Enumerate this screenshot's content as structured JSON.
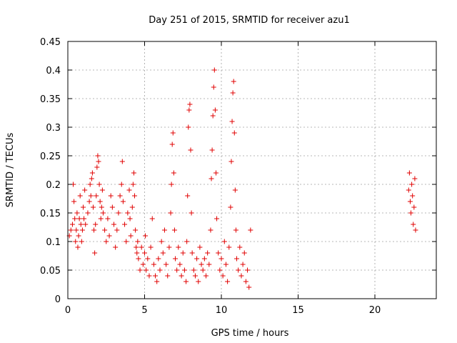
{
  "chart_data": {
    "type": "scatter",
    "title": "Day 251 of 2015, SRMTID for receiver azu1",
    "xlabel": "GPS time / hours",
    "ylabel": "SRMTID / TECUs",
    "xlim": [
      0,
      24
    ],
    "ylim": [
      0,
      0.45
    ],
    "xticks": [
      0,
      5,
      10,
      15,
      20
    ],
    "yticks": [
      0,
      0.05,
      0.1,
      0.15,
      0.2,
      0.25,
      0.3,
      0.35,
      0.4,
      0.45
    ],
    "xtick_labels": [
      "0",
      "5",
      "10",
      "15",
      "20"
    ],
    "ytick_labels": [
      "0",
      "0.05",
      "0.1",
      "0.15",
      "0.2",
      "0.25",
      "0.3",
      "0.35",
      "0.4",
      "0.45"
    ],
    "grid": true,
    "marker": "plus",
    "color": "#e00000",
    "series": [
      {
        "name": "SRMTID",
        "points": [
          [
            0.1,
            0.11
          ],
          [
            0.2,
            0.12
          ],
          [
            0.3,
            0.13
          ],
          [
            0.35,
            0.2
          ],
          [
            0.4,
            0.17
          ],
          [
            0.45,
            0.14
          ],
          [
            0.5,
            0.1
          ],
          [
            0.55,
            0.12
          ],
          [
            0.6,
            0.15
          ],
          [
            0.65,
            0.09
          ],
          [
            0.7,
            0.11
          ],
          [
            0.75,
            0.14
          ],
          [
            0.8,
            0.18
          ],
          [
            0.85,
            0.13
          ],
          [
            0.9,
            0.1
          ],
          [
            0.95,
            0.12
          ],
          [
            1.0,
            0.16
          ],
          [
            1.05,
            0.14
          ],
          [
            1.1,
            0.19
          ],
          [
            1.15,
            0.13
          ],
          [
            1.3,
            0.15
          ],
          [
            1.4,
            0.17
          ],
          [
            1.45,
            0.2
          ],
          [
            1.5,
            0.18
          ],
          [
            1.55,
            0.21
          ],
          [
            1.6,
            0.22
          ],
          [
            1.65,
            0.16
          ],
          [
            1.7,
            0.12
          ],
          [
            1.75,
            0.08
          ],
          [
            1.8,
            0.13
          ],
          [
            1.85,
            0.18
          ],
          [
            1.9,
            0.23
          ],
          [
            1.95,
            0.25
          ],
          [
            2.0,
            0.24
          ],
          [
            2.05,
            0.2
          ],
          [
            2.1,
            0.17
          ],
          [
            2.15,
            0.14
          ],
          [
            2.2,
            0.16
          ],
          [
            2.25,
            0.19
          ],
          [
            2.3,
            0.15
          ],
          [
            2.4,
            0.12
          ],
          [
            2.5,
            0.1
          ],
          [
            2.6,
            0.14
          ],
          [
            2.7,
            0.11
          ],
          [
            2.8,
            0.18
          ],
          [
            2.9,
            0.16
          ],
          [
            3.0,
            0.13
          ],
          [
            3.1,
            0.09
          ],
          [
            3.2,
            0.12
          ],
          [
            3.3,
            0.15
          ],
          [
            3.4,
            0.18
          ],
          [
            3.5,
            0.2
          ],
          [
            3.55,
            0.24
          ],
          [
            3.6,
            0.17
          ],
          [
            3.7,
            0.13
          ],
          [
            3.8,
            0.1
          ],
          [
            3.9,
            0.15
          ],
          [
            4.0,
            0.19
          ],
          [
            4.05,
            0.14
          ],
          [
            4.1,
            0.11
          ],
          [
            4.2,
            0.16
          ],
          [
            4.25,
            0.2
          ],
          [
            4.3,
            0.22
          ],
          [
            4.35,
            0.18
          ],
          [
            4.4,
            0.12
          ],
          [
            4.45,
            0.09
          ],
          [
            4.5,
            0.08
          ],
          [
            4.55,
            0.1
          ],
          [
            4.6,
            0.07
          ],
          [
            4.7,
            0.05
          ],
          [
            4.8,
            0.09
          ],
          [
            4.9,
            0.06
          ],
          [
            5.0,
            0.08
          ],
          [
            5.05,
            0.11
          ],
          [
            5.1,
            0.05
          ],
          [
            5.2,
            0.07
          ],
          [
            5.3,
            0.04
          ],
          [
            5.4,
            0.09
          ],
          [
            5.5,
            0.14
          ],
          [
            5.6,
            0.06
          ],
          [
            5.7,
            0.04
          ],
          [
            5.8,
            0.03
          ],
          [
            5.9,
            0.07
          ],
          [
            6.0,
            0.05
          ],
          [
            6.1,
            0.1
          ],
          [
            6.2,
            0.08
          ],
          [
            6.3,
            0.12
          ],
          [
            6.4,
            0.06
          ],
          [
            6.5,
            0.04
          ],
          [
            6.6,
            0.09
          ],
          [
            6.7,
            0.15
          ],
          [
            6.75,
            0.2
          ],
          [
            6.8,
            0.27
          ],
          [
            6.85,
            0.29
          ],
          [
            6.9,
            0.22
          ],
          [
            6.95,
            0.12
          ],
          [
            7.0,
            0.07
          ],
          [
            7.1,
            0.05
          ],
          [
            7.2,
            0.09
          ],
          [
            7.3,
            0.06
          ],
          [
            7.4,
            0.04
          ],
          [
            7.5,
            0.08
          ],
          [
            7.6,
            0.05
          ],
          [
            7.7,
            0.03
          ],
          [
            7.75,
            0.1
          ],
          [
            7.8,
            0.18
          ],
          [
            7.85,
            0.3
          ],
          [
            7.9,
            0.33
          ],
          [
            7.95,
            0.34
          ],
          [
            8.0,
            0.26
          ],
          [
            8.05,
            0.15
          ],
          [
            8.1,
            0.08
          ],
          [
            8.2,
            0.05
          ],
          [
            8.3,
            0.04
          ],
          [
            8.4,
            0.07
          ],
          [
            8.5,
            0.03
          ],
          [
            8.6,
            0.09
          ],
          [
            8.7,
            0.06
          ],
          [
            8.8,
            0.05
          ],
          [
            8.9,
            0.07
          ],
          [
            9.0,
            0.04
          ],
          [
            9.1,
            0.08
          ],
          [
            9.2,
            0.06
          ],
          [
            9.3,
            0.12
          ],
          [
            9.35,
            0.21
          ],
          [
            9.4,
            0.26
          ],
          [
            9.45,
            0.32
          ],
          [
            9.5,
            0.37
          ],
          [
            9.55,
            0.4
          ],
          [
            9.6,
            0.33
          ],
          [
            9.65,
            0.22
          ],
          [
            9.7,
            0.14
          ],
          [
            9.8,
            0.08
          ],
          [
            9.9,
            0.05
          ],
          [
            10.0,
            0.07
          ],
          [
            10.1,
            0.04
          ],
          [
            10.2,
            0.1
          ],
          [
            10.3,
            0.06
          ],
          [
            10.4,
            0.03
          ],
          [
            10.5,
            0.09
          ],
          [
            10.6,
            0.16
          ],
          [
            10.65,
            0.24
          ],
          [
            10.7,
            0.31
          ],
          [
            10.75,
            0.36
          ],
          [
            10.8,
            0.38
          ],
          [
            10.85,
            0.29
          ],
          [
            10.9,
            0.19
          ],
          [
            10.95,
            0.12
          ],
          [
            11.0,
            0.07
          ],
          [
            11.1,
            0.05
          ],
          [
            11.2,
            0.09
          ],
          [
            11.3,
            0.04
          ],
          [
            11.4,
            0.06
          ],
          [
            11.5,
            0.08
          ],
          [
            11.6,
            0.03
          ],
          [
            11.7,
            0.05
          ],
          [
            11.8,
            0.02
          ],
          [
            11.9,
            0.12
          ],
          [
            22.2,
            0.19
          ],
          [
            22.25,
            0.22
          ],
          [
            22.3,
            0.17
          ],
          [
            22.35,
            0.15
          ],
          [
            22.4,
            0.2
          ],
          [
            22.45,
            0.18
          ],
          [
            22.5,
            0.13
          ],
          [
            22.55,
            0.16
          ],
          [
            22.6,
            0.21
          ],
          [
            22.65,
            0.12
          ]
        ]
      }
    ]
  }
}
